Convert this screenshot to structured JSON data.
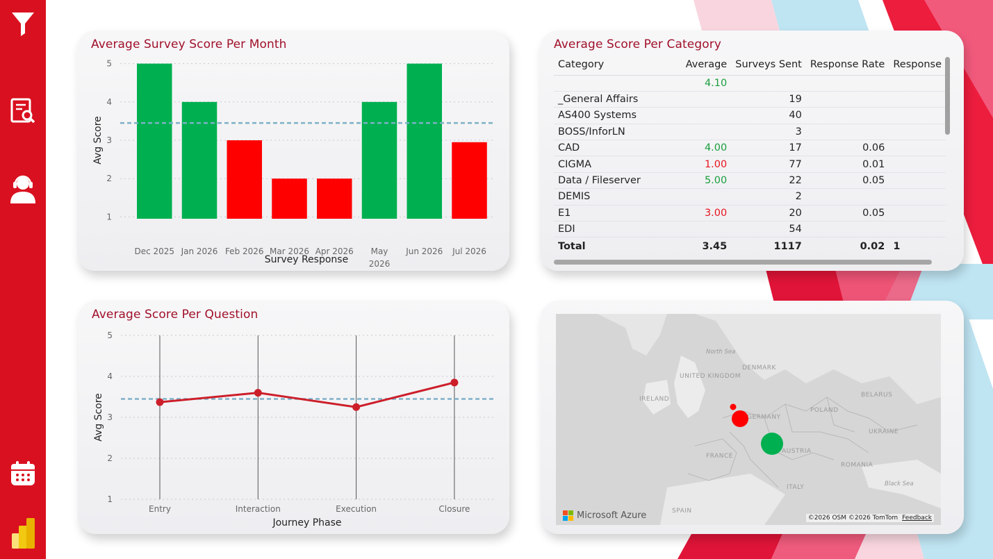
{
  "nav": {
    "items": [
      {
        "name": "filter-icon"
      },
      {
        "name": "report-search-icon"
      },
      {
        "name": "support-agent-icon"
      },
      {
        "name": "calendar-icon"
      },
      {
        "name": "power-bi-icon"
      }
    ]
  },
  "theme": {
    "accent": "#d9101f",
    "title": "#a0102a",
    "good": "#00b050",
    "bad": "#ff0000"
  },
  "monthly": {
    "title": "Average Survey Score Per Month",
    "chart_data": {
      "type": "bar",
      "title": "Average Survey Score Per Month",
      "xlabel": "Survey Response",
      "ylabel": "Avg Score",
      "ylim": [
        0.5,
        5.5
      ],
      "yticks": [
        1,
        2,
        3,
        4,
        5
      ],
      "categories": [
        "Dec 2025",
        "Jan 2026",
        "Feb 2026",
        "Mar 2026",
        "Apr 2026",
        "May 2026",
        "Jun 2026",
        "Jul 2026"
      ],
      "category_lines": [
        [
          "Dec 2025"
        ],
        [
          "Jan 2026"
        ],
        [
          "Feb 2026"
        ],
        [
          "Mar 2026"
        ],
        [
          "Apr 2026"
        ],
        [
          "May",
          "2026"
        ],
        [
          "Jun 2026"
        ],
        [
          "Jul 2026"
        ]
      ],
      "values": [
        5,
        4,
        3,
        2,
        2,
        4,
        5,
        2.95
      ],
      "colors": [
        "#00b050",
        "#00b050",
        "#ff0000",
        "#ff0000",
        "#ff0000",
        "#00b050",
        "#00b050",
        "#ff0000"
      ],
      "reference_line": 3.45,
      "grid": true
    }
  },
  "category": {
    "title": "Average Score Per Category",
    "columns": [
      "Category",
      "Average",
      "Surveys Sent",
      "Response Rate",
      "Response"
    ],
    "rows": [
      {
        "category": "",
        "average": "4.10",
        "avg_color": "green",
        "sent": "",
        "rate": "",
        "resp": ""
      },
      {
        "category": "_General Affairs",
        "average": "",
        "avg_color": "",
        "sent": "19",
        "rate": "",
        "resp": ""
      },
      {
        "category": "AS400 Systems",
        "average": "",
        "avg_color": "",
        "sent": "40",
        "rate": "",
        "resp": ""
      },
      {
        "category": "BOSS/InforLN",
        "average": "",
        "avg_color": "",
        "sent": "3",
        "rate": "",
        "resp": ""
      },
      {
        "category": "CAD",
        "average": "4.00",
        "avg_color": "green",
        "sent": "17",
        "rate": "0.06",
        "resp": ""
      },
      {
        "category": "CIGMA",
        "average": "1.00",
        "avg_color": "red",
        "sent": "77",
        "rate": "0.01",
        "resp": ""
      },
      {
        "category": "Data / Fileserver",
        "average": "5.00",
        "avg_color": "green",
        "sent": "22",
        "rate": "0.05",
        "resp": ""
      },
      {
        "category": "DEMIS",
        "average": "",
        "avg_color": "",
        "sent": "2",
        "rate": "",
        "resp": ""
      },
      {
        "category": "E1",
        "average": "3.00",
        "avg_color": "red",
        "sent": "20",
        "rate": "0.05",
        "resp": ""
      },
      {
        "category": "EDI",
        "average": "",
        "avg_color": "",
        "sent": "54",
        "rate": "",
        "resp": ""
      }
    ],
    "total": {
      "category": "Total",
      "average": "3.45",
      "sent": "1117",
      "rate": "0.02",
      "resp": "1"
    }
  },
  "question": {
    "title": "Average Score Per Question",
    "chart_data": {
      "type": "line",
      "title": "Average Score Per Question",
      "xlabel": "Journey Phase",
      "ylabel": "Avg Score",
      "ylim": [
        1,
        5
      ],
      "yticks": [
        1,
        2,
        3,
        4,
        5
      ],
      "categories": [
        "Entry",
        "Interaction",
        "Execution",
        "Closure"
      ],
      "values": [
        3.37,
        3.6,
        3.25,
        3.85
      ],
      "reference_line": 3.45,
      "color": "#cc1f2a",
      "grid": true
    }
  },
  "map": {
    "country_labels": [
      "UNITED KINGDOM",
      "IRELAND",
      "DENMARK",
      "GERMANY",
      "POLAND",
      "BELARUS",
      "UKRAINE",
      "FRANCE",
      "AUSTRIA",
      "ROMANIA",
      "ITALY",
      "SPAIN"
    ],
    "sea_labels": [
      "North Sea",
      "Black Sea"
    ],
    "bubbles": [
      {
        "location": "Netherlands",
        "color": "#ff0000"
      },
      {
        "location": "Belgium",
        "color": "#ff0000"
      },
      {
        "location": "Austria",
        "color": "#00b050"
      }
    ],
    "provider": "Microsoft Azure",
    "attribution": "©2026 OSM  ©2026 TomTom",
    "feedback": "Feedback"
  }
}
